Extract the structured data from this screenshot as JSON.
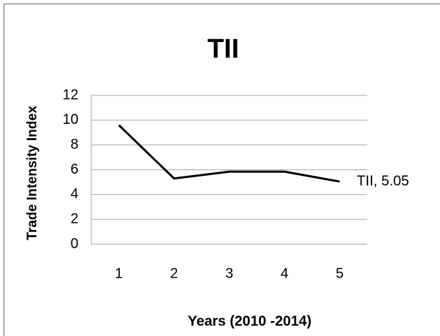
{
  "chart_data": {
    "type": "line",
    "title": "TII",
    "x_label": "Years (2010 -2014)",
    "y_label": "Trade Intensity Index",
    "categories": [
      "1",
      "2",
      "3",
      "4",
      "5"
    ],
    "series": [
      {
        "name": "TII",
        "color": "#000000",
        "values": [
          9.6,
          5.3,
          5.85,
          5.85,
          5.05
        ],
        "value_labels": [
          null,
          null,
          null,
          null,
          "TII, 5.05"
        ]
      }
    ],
    "ylim": [
      0,
      12
    ],
    "yticks": [
      0,
      2,
      4,
      6,
      8,
      10,
      12
    ],
    "grid": true
  }
}
